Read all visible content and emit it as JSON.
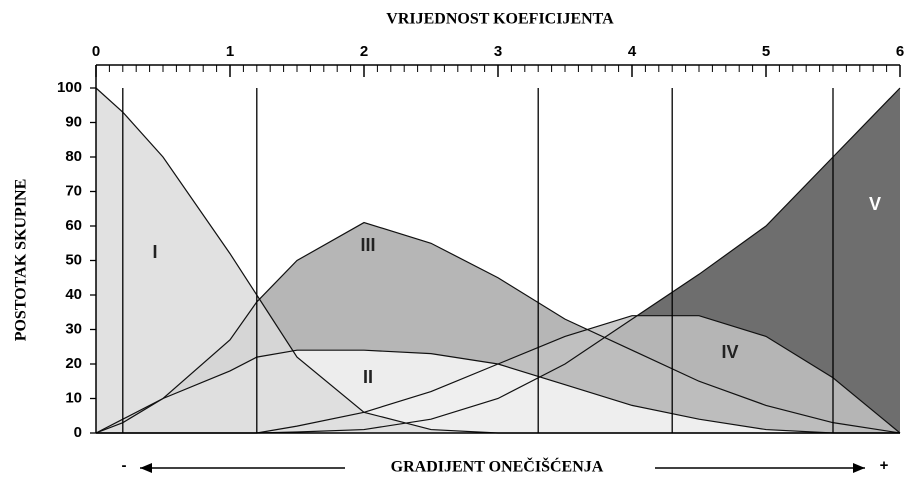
{
  "chart_data": {
    "type": "area",
    "title": "VRIJEDNOST KOEFICIJENTA",
    "y_label": "POSTOTAK SKUPINE",
    "x_label": "GRADIJENT ONEČIŠĆENJA",
    "gradient_low": "-",
    "gradient_high": "+",
    "x": [
      0,
      0.2,
      0.5,
      1,
      1.2,
      1.5,
      2,
      2.5,
      3,
      3.5,
      4,
      4.5,
      5,
      5.5,
      6
    ],
    "series": [
      {
        "name": "V",
        "color": "#555555",
        "values": [
          0,
          0,
          0,
          0,
          0,
          0.3,
          1,
          4,
          10,
          20,
          33,
          46,
          60,
          80,
          100
        ]
      },
      {
        "name": "III",
        "color": "#a9a9a9",
        "values": [
          0,
          4,
          10,
          27,
          38,
          50,
          61,
          55,
          45,
          33,
          24,
          15,
          8,
          3,
          0
        ]
      },
      {
        "name": "IV",
        "color": "#c2c2c2",
        "values": [
          0,
          0,
          0,
          0,
          0,
          2,
          6,
          12,
          20,
          28,
          34,
          34,
          28,
          16,
          0
        ]
      },
      {
        "name": "II",
        "color": "#ffffff",
        "values": [
          0,
          3,
          10,
          18,
          22,
          24,
          24,
          23,
          20,
          14,
          8,
          4,
          1,
          0,
          0
        ]
      },
      {
        "name": "I",
        "color": "#dcdcdc",
        "values": [
          100,
          93,
          80,
          52,
          40,
          22,
          6,
          1,
          0,
          0,
          0,
          0,
          0,
          0,
          0
        ]
      }
    ],
    "boundaries": [
      0.2,
      1.2,
      3.3,
      4.3,
      5.5
    ],
    "xlim": [
      0,
      6
    ],
    "ylim": [
      0,
      100
    ],
    "xticks": [
      0,
      1,
      2,
      3,
      4,
      5,
      6
    ],
    "xminorticks": [
      0.1,
      0.2,
      0.3,
      0.4,
      0.5,
      0.6,
      0.7,
      0.8,
      0.9,
      1.1,
      1.2,
      1.3,
      1.4,
      1.5,
      1.6,
      1.7,
      1.8,
      1.9,
      2.1,
      2.2,
      2.3,
      2.4,
      2.5,
      2.6,
      2.7,
      2.8,
      2.9,
      3.1,
      3.2,
      3.3,
      3.4,
      3.5,
      3.6,
      3.7,
      3.8,
      3.9,
      4.1,
      4.2,
      4.3,
      4.4,
      4.5,
      4.6,
      4.7,
      4.8,
      4.9,
      5.1,
      5.2,
      5.3,
      5.4,
      5.5,
      5.6,
      5.7,
      5.8,
      5.9
    ],
    "yticks": [
      0,
      10,
      20,
      30,
      40,
      50,
      60,
      70,
      80,
      90,
      100
    ]
  }
}
